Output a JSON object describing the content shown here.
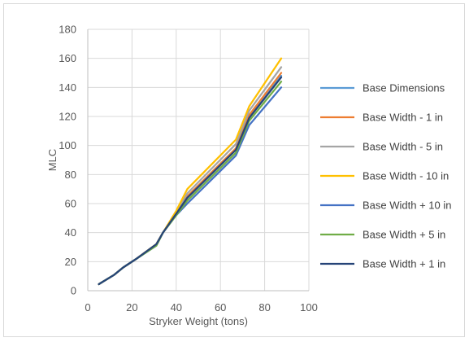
{
  "chart_data": {
    "type": "line",
    "title": "",
    "xlabel": "Stryker Weight (tons)",
    "ylabel": "MLC",
    "xlim": [
      0,
      100
    ],
    "ylim": [
      0,
      180
    ],
    "xticks": [
      0,
      20,
      40,
      60,
      80,
      100
    ],
    "yticks": [
      0,
      20,
      40,
      60,
      80,
      100,
      120,
      140,
      160,
      180
    ],
    "grid": "horizontal",
    "legend_position": "right",
    "series": [
      {
        "name": "Base Dimensions",
        "color": "#5b9bd5",
        "x": [
          5,
          12,
          16,
          22,
          31,
          34,
          40,
          45,
          67,
          73,
          87.5
        ],
        "y": [
          4.5,
          11,
          16,
          22,
          32,
          40,
          53,
          64,
          97,
          120,
          148
        ]
      },
      {
        "name": "Base Width - 1 in",
        "color": "#ed7d31",
        "x": [
          5,
          12,
          16,
          22,
          31,
          34,
          40,
          45,
          67,
          73,
          87.5
        ],
        "y": [
          4.5,
          11,
          16,
          22,
          32,
          40,
          53,
          65,
          98,
          121,
          150
        ]
      },
      {
        "name": "Base Width - 5 in",
        "color": "#a5a5a5",
        "x": [
          5,
          12,
          16,
          22,
          31,
          34,
          40,
          45,
          67,
          73,
          87.5
        ],
        "y": [
          4.5,
          11,
          16,
          22,
          32,
          40,
          54,
          67,
          101,
          124,
          154
        ]
      },
      {
        "name": "Base Width - 10 in",
        "color": "#ffc000",
        "x": [
          5,
          12,
          16,
          22,
          31,
          34,
          40,
          45,
          67,
          73,
          87.5
        ],
        "y": [
          4.5,
          11,
          16,
          22,
          32,
          40,
          55,
          70,
          104,
          127,
          160
        ]
      },
      {
        "name": "Base Width + 10 in",
        "color": "#4472c4",
        "x": [
          5,
          12,
          16,
          22,
          31,
          34,
          40,
          45,
          67,
          73,
          87.5
        ],
        "y": [
          4.5,
          11,
          16,
          22,
          31,
          40,
          52,
          60,
          93,
          114,
          140
        ]
      },
      {
        "name": "Base Width + 5 in",
        "color": "#70ad47",
        "x": [
          5,
          12,
          16,
          22,
          31,
          34,
          40,
          45,
          67,
          73,
          87.5
        ],
        "y": [
          4.5,
          11,
          16,
          22,
          31,
          40,
          52,
          62,
          95,
          117,
          144
        ]
      },
      {
        "name": "Base Width + 1 in",
        "color": "#264478",
        "x": [
          5,
          12,
          16,
          22,
          31,
          34,
          40,
          45,
          67,
          73,
          87.5
        ],
        "y": [
          4.5,
          11,
          16,
          22,
          32,
          40,
          53,
          64,
          97,
          119,
          147
        ]
      }
    ]
  }
}
